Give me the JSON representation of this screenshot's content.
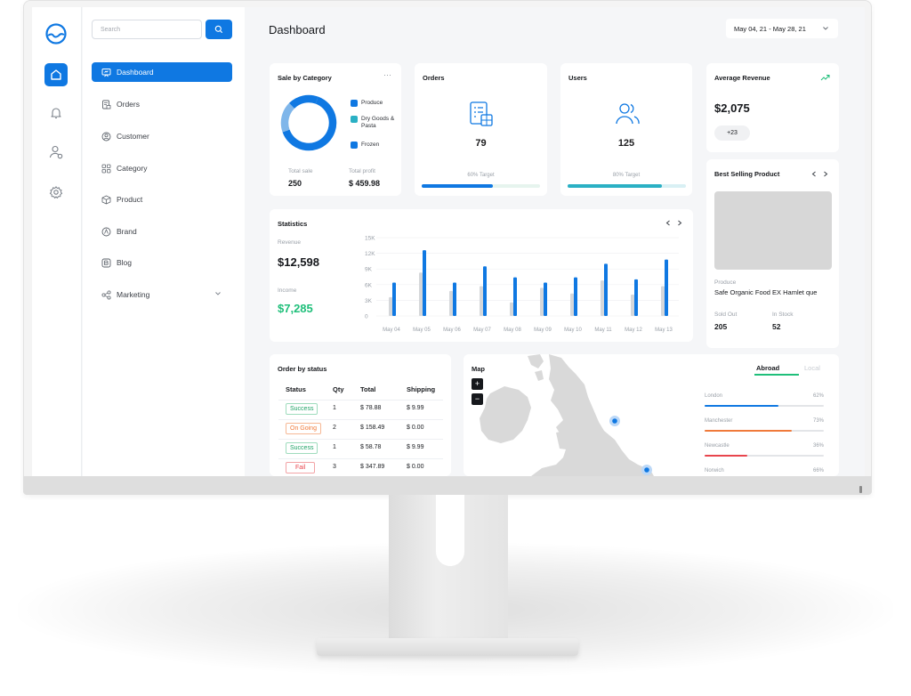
{
  "colors": {
    "accent": "#0f78e2",
    "light_blue": "#7fb6ea",
    "teal": "#2ab0c4",
    "green": "#1fbf7a",
    "orange": "#f07a3a",
    "red": "#e8454d",
    "gray_bar": "#d5d7da"
  },
  "rail": {
    "icons": [
      "logo-icon",
      "home-icon",
      "bell-icon",
      "user-settings-icon",
      "settings-icon"
    ]
  },
  "sidebar": {
    "search_placeholder": "Search",
    "items": [
      {
        "label": "Dashboard",
        "icon": "presentation-icon"
      },
      {
        "label": "Orders",
        "icon": "orders-icon"
      },
      {
        "label": "Customer",
        "icon": "customer-icon"
      },
      {
        "label": "Category",
        "icon": "category-icon"
      },
      {
        "label": "Product",
        "icon": "product-icon"
      },
      {
        "label": "Brand",
        "icon": "brand-icon"
      },
      {
        "label": "Blog",
        "icon": "blog-icon"
      },
      {
        "label": "Marketing",
        "icon": "marketing-icon"
      }
    ]
  },
  "header": {
    "title": "Dashboard",
    "date_range": "May 04, 21 - May 28, 21"
  },
  "sale_by_category": {
    "title": "Sale by Category",
    "menu": "···",
    "legend": [
      "Produce",
      "Dry Goods & Pasta",
      "Frozen"
    ],
    "donut_shares": [
      0.64,
      0.18,
      0.18
    ],
    "total_sale_label": "Total sale",
    "total_sale_value": "250",
    "total_profit_label": "Total profit",
    "total_profit_value": "$ 459.98"
  },
  "orders": {
    "title": "Orders",
    "value": "79",
    "target_label": "60% Target",
    "progress": 0.6
  },
  "users": {
    "title": "Users",
    "value": "125",
    "target_label": "80% Target",
    "progress": 0.8
  },
  "average_revenue": {
    "title": "Average Revenue",
    "value": "$2,075",
    "badge": "+23"
  },
  "best_selling": {
    "title": "Best Selling Product",
    "category": "Produce",
    "name": "Safe Organic Food EX Hamlet que",
    "sold_out_label": "Sold Out",
    "sold_out_value": "205",
    "in_stock_label": "In Stock",
    "in_stock_value": "52"
  },
  "statistics": {
    "title": "Statistics",
    "revenue_label": "Revenue",
    "revenue_value": "$12,598",
    "income_label": "Income",
    "income_value": "$7,285"
  },
  "chart_data": {
    "type": "bar",
    "title": "Statistics",
    "categories": [
      "May 04",
      "May 05",
      "May 06",
      "May 07",
      "May 08",
      "May 09",
      "May 10",
      "May 11",
      "May 12",
      "May 13"
    ],
    "series": [
      {
        "values": [
          3600,
          8300,
          4800,
          5700,
          2600,
          5400,
          4300,
          6800,
          4100,
          5700
        ]
      },
      {
        "values": [
          6400,
          12600,
          6400,
          9500,
          7400,
          6400,
          7400,
          10000,
          7000,
          10800
        ]
      }
    ],
    "y_ticks": [
      "0",
      "3K",
      "6K",
      "9K",
      "12K",
      "15K"
    ],
    "ylim": [
      0,
      15000
    ],
    "grid": true
  },
  "order_status": {
    "title": "Order by status",
    "headers": [
      "Status",
      "Qty",
      "Total",
      "Shipping"
    ],
    "rows": [
      {
        "status": "Success",
        "kind": "success",
        "qty": "1",
        "total": "$ 78.88",
        "shipping": "$ 9.99"
      },
      {
        "status": "On Going",
        "kind": "ongoing",
        "qty": "2",
        "total": "$ 158.49",
        "shipping": "$ 0.00"
      },
      {
        "status": "Success",
        "kind": "success",
        "qty": "1",
        "total": "$ 58.78",
        "shipping": "$ 9.99"
      },
      {
        "status": "Fail",
        "kind": "fail",
        "qty": "3",
        "total": "$ 347.89",
        "shipping": "$ 0.00"
      }
    ]
  },
  "map": {
    "title": "Map",
    "zoom_in": "+",
    "zoom_out": "−",
    "tabs": [
      "Abroad",
      "Local"
    ],
    "active_tab": "Abroad",
    "regions": [
      {
        "name": "London",
        "pct": "62%",
        "value": 0.62,
        "color": "#0f78e2"
      },
      {
        "name": "Manchester",
        "pct": "73%",
        "value": 0.73,
        "color": "#f07a3a"
      },
      {
        "name": "Newcastle",
        "pct": "36%",
        "value": 0.36,
        "color": "#e8454d"
      },
      {
        "name": "Norwich",
        "pct": "66%",
        "value": 0.66,
        "color": "#2ab0c4"
      }
    ]
  }
}
